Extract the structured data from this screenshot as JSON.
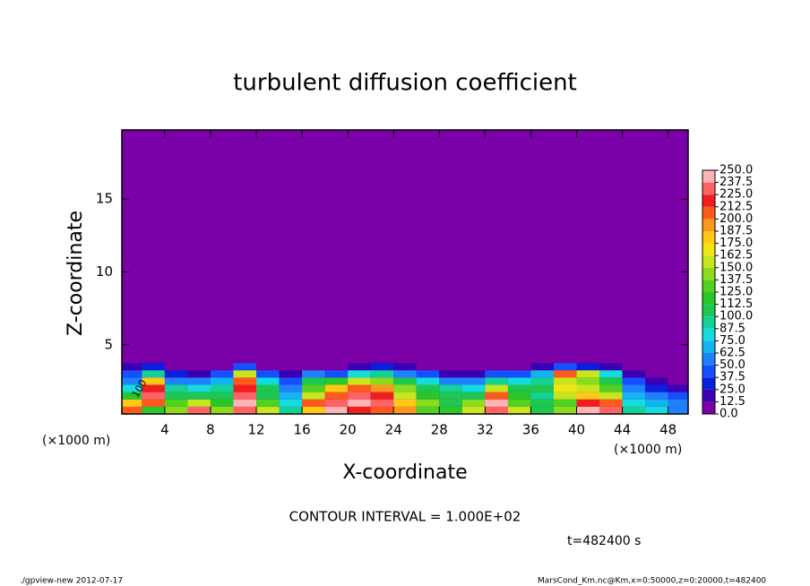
{
  "chart_data": {
    "type": "contour",
    "title": "turbulent diffusion coefficient",
    "xlabel": "X-coordinate",
    "ylabel": "Z-coordinate",
    "x_unit": "(×1000 m)",
    "y_unit": "(×1000 m)",
    "xlim": [
      0.25,
      49.75
    ],
    "ylim": [
      0.25,
      19.75
    ],
    "xticks": [
      4,
      8,
      12,
      16,
      20,
      24,
      28,
      32,
      36,
      40,
      44,
      48
    ],
    "yticks": [
      5,
      10,
      15
    ],
    "x": [
      1,
      3,
      5,
      7,
      9,
      11,
      13,
      15,
      17,
      19,
      21,
      23,
      25,
      27,
      29,
      31,
      33,
      35,
      37,
      39,
      41,
      43,
      45,
      47,
      49
    ],
    "y": [
      0.5,
      1.0,
      1.5,
      2.0,
      2.5,
      3.0,
      3.5,
      4.0
    ],
    "z": [
      [
        210,
        180,
        120,
        80,
        60,
        40,
        20,
        0
      ],
      [
        120,
        200,
        230,
        220,
        180,
        90,
        30,
        0
      ],
      [
        140,
        130,
        110,
        90,
        60,
        30,
        10,
        0
      ],
      [
        230,
        150,
        100,
        80,
        50,
        20,
        5,
        0
      ],
      [
        140,
        120,
        100,
        90,
        70,
        40,
        10,
        0
      ],
      [
        230,
        240,
        230,
        220,
        200,
        150,
        40,
        0
      ],
      [
        150,
        130,
        110,
        100,
        80,
        40,
        10,
        0
      ],
      [
        90,
        80,
        70,
        60,
        40,
        20,
        5,
        0
      ],
      [
        180,
        210,
        160,
        130,
        100,
        50,
        10,
        0
      ],
      [
        240,
        230,
        210,
        180,
        120,
        40,
        5,
        0
      ],
      [
        220,
        245,
        230,
        200,
        150,
        80,
        20,
        0
      ],
      [
        210,
        230,
        220,
        190,
        140,
        90,
        30,
        0
      ],
      [
        190,
        180,
        160,
        140,
        110,
        60,
        15,
        0
      ],
      [
        130,
        140,
        120,
        110,
        80,
        40,
        10,
        0
      ],
      [
        120,
        110,
        100,
        90,
        60,
        20,
        5,
        0
      ],
      [
        160,
        140,
        110,
        80,
        50,
        20,
        5,
        0
      ],
      [
        230,
        240,
        200,
        150,
        90,
        40,
        10,
        0
      ],
      [
        150,
        130,
        120,
        100,
        80,
        40,
        10,
        0
      ],
      [
        110,
        100,
        90,
        100,
        90,
        70,
        20,
        0
      ],
      [
        140,
        130,
        150,
        170,
        160,
        200,
        40,
        0
      ],
      [
        240,
        220,
        180,
        160,
        140,
        150,
        30,
        0
      ],
      [
        230,
        200,
        160,
        130,
        110,
        80,
        20,
        0
      ],
      [
        90,
        80,
        70,
        60,
        40,
        20,
        5,
        0
      ],
      [
        80,
        70,
        50,
        30,
        15,
        5,
        0,
        0
      ],
      [
        60,
        50,
        40,
        20,
        10,
        5,
        0,
        0
      ]
    ],
    "levels": [
      {
        "value": 0,
        "label": "0.0"
      },
      {
        "value": 12.5,
        "label": "12.5"
      },
      {
        "value": 25,
        "label": "25.0"
      },
      {
        "value": 37.5,
        "label": "37.5"
      },
      {
        "value": 50,
        "label": "50.0"
      },
      {
        "value": 62.5,
        "label": "62.5"
      },
      {
        "value": 75,
        "label": "75.0"
      },
      {
        "value": 87.5,
        "label": "87.5"
      },
      {
        "value": 100,
        "label": "100.0"
      },
      {
        "value": 112.5,
        "label": "112.5"
      },
      {
        "value": 125,
        "label": "125.0"
      },
      {
        "value": 137.5,
        "label": "137.5"
      },
      {
        "value": 150,
        "label": "150.0"
      },
      {
        "value": 162.5,
        "label": "162.5"
      },
      {
        "value": 175,
        "label": "175.0"
      },
      {
        "value": 187.5,
        "label": "187.5"
      },
      {
        "value": 200,
        "label": "200.0"
      },
      {
        "value": 212.5,
        "label": "212.5"
      },
      {
        "value": 225,
        "label": "225.0"
      },
      {
        "value": 237.5,
        "label": "237.5"
      },
      {
        "value": 250,
        "label": "250.0"
      }
    ],
    "colors": [
      "#7a00a8",
      "#3c00b4",
      "#0a1ee0",
      "#1450ff",
      "#1e82ff",
      "#14b4f0",
      "#14dcdc",
      "#14d296",
      "#1ec850",
      "#28c828",
      "#50d21e",
      "#8cdc1e",
      "#c8e61e",
      "#f0e614",
      "#ffc814",
      "#ff961e",
      "#ff5a1e",
      "#f01e1e",
      "#ff6464",
      "#ffb4b4"
    ],
    "contour_label": "100",
    "contour_interval": "CONTOUR INTERVAL = 1.000E+02",
    "time_label": "t=482400 s",
    "footer_left": "./gpview-new  2012-07-17",
    "footer_right": "MarsCond_Km.nc@Km,x=0:50000,z=0:20000,t=482400"
  }
}
